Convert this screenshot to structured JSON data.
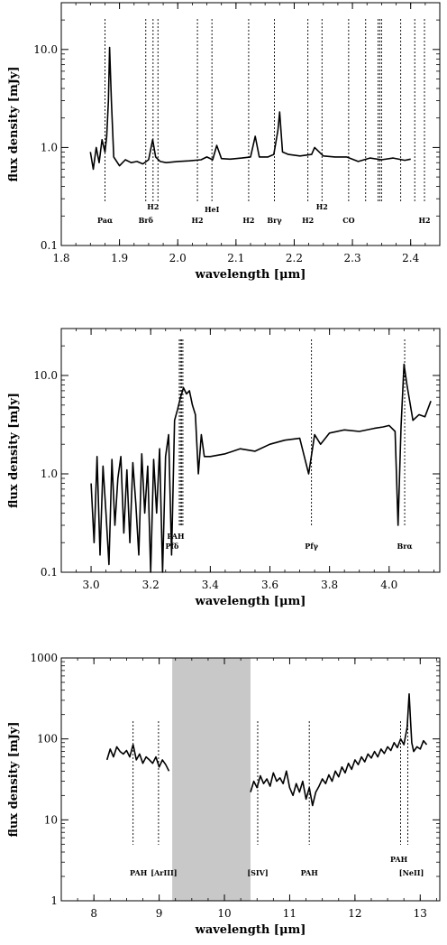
{
  "chart_data": [
    {
      "type": "line",
      "xlabel": "wavelength [μm]",
      "ylabel": "flux density [mJy]",
      "xlim": [
        1.8,
        2.45
      ],
      "ylim": [
        0.1,
        30
      ],
      "yscale": "log",
      "xticks": [
        1.8,
        1.9,
        2.0,
        2.1,
        2.2,
        2.3,
        2.4
      ],
      "xtick_labels": [
        "1.8",
        "1.9",
        "2.0",
        "2.1",
        "2.2",
        "2.3",
        "2.4"
      ],
      "yticks": [
        0.1,
        1.0,
        10.0
      ],
      "ytick_labels": [
        "0.1",
        "1.0",
        "10.0"
      ],
      "series": [
        {
          "x": [
            1.85,
            1.855,
            1.86,
            1.865,
            1.87,
            1.875,
            1.878,
            1.881,
            1.883,
            1.886,
            1.89,
            1.9,
            1.91,
            1.92,
            1.93,
            1.94,
            1.95,
            1.957,
            1.962,
            1.97,
            1.98,
            2.0,
            2.02,
            2.04,
            2.05,
            2.06,
            2.067,
            2.075,
            2.09,
            2.11,
            2.125,
            2.133,
            2.14,
            2.155,
            2.165,
            2.172,
            2.175,
            2.18,
            2.19,
            2.21,
            2.23,
            2.235,
            2.25,
            2.27,
            2.29,
            2.31,
            2.33,
            2.35,
            2.37,
            2.39,
            2.4
          ],
          "y": [
            0.9,
            0.6,
            1.0,
            0.7,
            1.2,
            0.9,
            1.3,
            3.0,
            10.5,
            3.0,
            0.8,
            0.65,
            0.75,
            0.7,
            0.72,
            0.68,
            0.75,
            1.2,
            0.8,
            0.72,
            0.7,
            0.72,
            0.73,
            0.75,
            0.8,
            0.75,
            1.05,
            0.77,
            0.76,
            0.78,
            0.8,
            1.3,
            0.8,
            0.8,
            0.85,
            1.5,
            2.3,
            0.9,
            0.85,
            0.82,
            0.85,
            1.0,
            0.82,
            0.8,
            0.8,
            0.72,
            0.78,
            0.75,
            0.78,
            0.74,
            0.76
          ]
        }
      ],
      "lines": [
        {
          "x": 1.8751,
          "label": "Paα"
        },
        {
          "x": 1.9451,
          "label": "Brδ"
        },
        {
          "x": 1.9576,
          "label": "H2"
        },
        {
          "x": 1.966,
          "label": ""
        },
        {
          "x": 2.0338,
          "label": "H2"
        },
        {
          "x": 2.0587,
          "label": "HeI"
        },
        {
          "x": 2.1218,
          "label": "H2"
        },
        {
          "x": 2.1661,
          "label": "Brγ"
        },
        {
          "x": 2.2235,
          "label": "H2"
        },
        {
          "x": 2.2477,
          "label": "H2"
        },
        {
          "x": 2.2935,
          "label": "CO"
        },
        {
          "x": 2.3227,
          "label": ""
        },
        {
          "x": 2.3441,
          "label": ""
        },
        {
          "x": 2.347,
          "label": ""
        },
        {
          "x": 2.35,
          "label": ""
        },
        {
          "x": 2.3829,
          "label": ""
        },
        {
          "x": 2.407,
          "label": ""
        },
        {
          "x": 2.4237,
          "label": "H2"
        }
      ]
    },
    {
      "type": "line",
      "xlabel": "wavelength [μm]",
      "ylabel": "flux density [mJy]",
      "xlim": [
        2.9,
        4.17
      ],
      "ylim": [
        0.1,
        30
      ],
      "yscale": "log",
      "xticks": [
        3.0,
        3.2,
        3.4,
        3.6,
        3.8,
        4.0
      ],
      "xtick_labels": [
        "3.0",
        "3.2",
        "3.4",
        "3.6",
        "3.8",
        "4.0"
      ],
      "yticks": [
        0.1,
        1.0,
        10.0
      ],
      "ytick_labels": [
        "0.1",
        "1.0",
        "10.0"
      ],
      "series": [
        {
          "x": [
            3.0,
            3.01,
            3.02,
            3.03,
            3.04,
            3.05,
            3.06,
            3.07,
            3.08,
            3.09,
            3.1,
            3.11,
            3.12,
            3.13,
            3.14,
            3.15,
            3.16,
            3.17,
            3.18,
            3.19,
            3.2,
            3.21,
            3.22,
            3.23,
            3.24,
            3.25,
            3.26,
            3.27,
            3.28,
            3.29,
            3.3,
            3.31,
            3.32,
            3.33,
            3.34,
            3.35,
            3.36,
            3.37,
            3.38,
            3.4,
            3.45,
            3.5,
            3.55,
            3.6,
            3.65,
            3.7,
            3.73,
            3.75,
            3.77,
            3.8,
            3.85,
            3.9,
            3.95,
            3.98,
            4.0,
            4.02,
            4.03,
            4.04,
            4.05,
            4.06,
            4.08,
            4.1,
            4.12,
            4.14
          ],
          "y": [
            0.8,
            0.2,
            1.5,
            0.15,
            1.2,
            0.4,
            0.12,
            1.4,
            0.3,
            0.9,
            1.5,
            0.25,
            1.1,
            0.2,
            1.3,
            0.5,
            0.15,
            1.6,
            0.4,
            1.2,
            0.1,
            1.4,
            0.4,
            1.8,
            0.1,
            1.5,
            2.5,
            0.15,
            3.5,
            4.5,
            6.0,
            7.5,
            6.5,
            7.0,
            5.0,
            4.0,
            1.0,
            2.5,
            1.5,
            1.5,
            1.6,
            1.8,
            1.7,
            2.0,
            2.2,
            2.3,
            1.0,
            2.5,
            2.0,
            2.6,
            2.8,
            2.7,
            2.9,
            3.0,
            3.1,
            2.7,
            0.3,
            3.0,
            13.0,
            8.0,
            3.5,
            4.0,
            3.8,
            5.5
          ]
        }
      ],
      "lines": [
        {
          "x": 3.3,
          "label": ""
        },
        {
          "x": 3.296,
          "label": "Pfδ"
        },
        {
          "x": 3.304,
          "label": ""
        },
        {
          "x": 3.308,
          "label": "PAH"
        },
        {
          "x": 3.7395,
          "label": "Pfγ"
        },
        {
          "x": 4.0522,
          "label": "Brα"
        }
      ]
    },
    {
      "type": "line",
      "xlabel": "wavelength [μm]",
      "ylabel": "flux density [mJy]",
      "xlim": [
        7.5,
        13.3
      ],
      "ylim": [
        1,
        1000
      ],
      "yscale": "log",
      "xticks": [
        8,
        9,
        10,
        11,
        12,
        13
      ],
      "xtick_labels": [
        "8",
        "9",
        "10",
        "11",
        "12",
        "13"
      ],
      "yticks": [
        1,
        10,
        100,
        1000
      ],
      "ytick_labels": [
        "1",
        "10",
        "100",
        "1000"
      ],
      "shaded_region": [
        9.2,
        10.4
      ],
      "series": [
        {
          "x": [
            8.2,
            8.25,
            8.3,
            8.35,
            8.4,
            8.45,
            8.5,
            8.55,
            8.6,
            8.65,
            8.7,
            8.75,
            8.8,
            8.85,
            8.9,
            8.95,
            9.0,
            9.05,
            9.1,
            9.15
          ],
          "y": [
            55,
            75,
            60,
            80,
            70,
            65,
            72,
            60,
            85,
            55,
            65,
            50,
            60,
            55,
            50,
            60,
            45,
            55,
            48,
            40
          ]
        },
        {
          "x": [
            10.4,
            10.45,
            10.5,
            10.55,
            10.6,
            10.65,
            10.7,
            10.75,
            10.8,
            10.85,
            10.9,
            10.95,
            11.0,
            11.05,
            11.1,
            11.15,
            11.2,
            11.25,
            11.3,
            11.35,
            11.4,
            11.45,
            11.5,
            11.55,
            11.6,
            11.65,
            11.7,
            11.75,
            11.8,
            11.85,
            11.9,
            11.95,
            12.0,
            12.05,
            12.1,
            12.15,
            12.2,
            12.25,
            12.3,
            12.35,
            12.4,
            12.45,
            12.5,
            12.55,
            12.6,
            12.65,
            12.7,
            12.75,
            12.8,
            12.83,
            12.85,
            12.87,
            12.9,
            12.95,
            13.0,
            13.05,
            13.1
          ],
          "y": [
            22,
            30,
            25,
            35,
            28,
            32,
            26,
            38,
            30,
            33,
            28,
            40,
            25,
            20,
            28,
            22,
            30,
            18,
            25,
            15,
            22,
            26,
            32,
            28,
            36,
            30,
            40,
            34,
            45,
            38,
            50,
            42,
            55,
            48,
            60,
            52,
            65,
            58,
            70,
            60,
            75,
            66,
            80,
            72,
            90,
            78,
            100,
            85,
            140,
            360,
            180,
            90,
            70,
            80,
            75,
            95,
            85
          ]
        }
      ],
      "lines": [
        {
          "x": 8.6,
          "label": "PAH"
        },
        {
          "x": 8.99,
          "label": "[ArIII]"
        },
        {
          "x": 10.51,
          "label": "[SIV]"
        },
        {
          "x": 11.3,
          "label": "PAH"
        },
        {
          "x": 12.7,
          "label": "PAH"
        },
        {
          "x": 12.81,
          "label": "[NeII]"
        }
      ]
    }
  ]
}
